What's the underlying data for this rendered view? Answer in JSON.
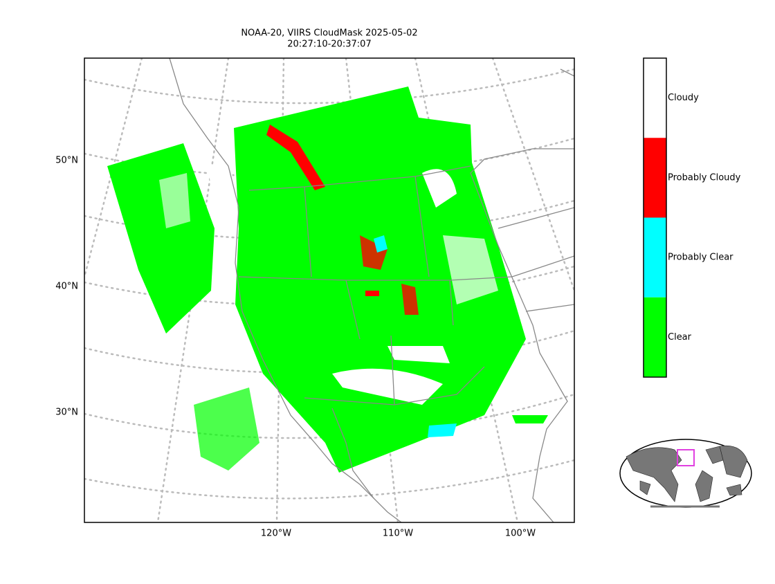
{
  "title": {
    "line1": "NOAA-20, VIIRS CloudMask 2025-05-02",
    "line2": "20:27:10-20:37:07"
  },
  "map": {
    "lat_labels": [
      "50°N",
      "40°N",
      "30°N"
    ],
    "lon_labels": [
      "120°W",
      "110°W",
      "100°W"
    ]
  },
  "colorbar": {
    "classes": [
      {
        "label": "Cloudy",
        "color": "#ffffff"
      },
      {
        "label": "Probably Cloudy",
        "color": "#ff0000"
      },
      {
        "label": "Probably Clear",
        "color": "#00ffff"
      },
      {
        "label": "Clear",
        "color": "#00ff00"
      }
    ]
  }
}
